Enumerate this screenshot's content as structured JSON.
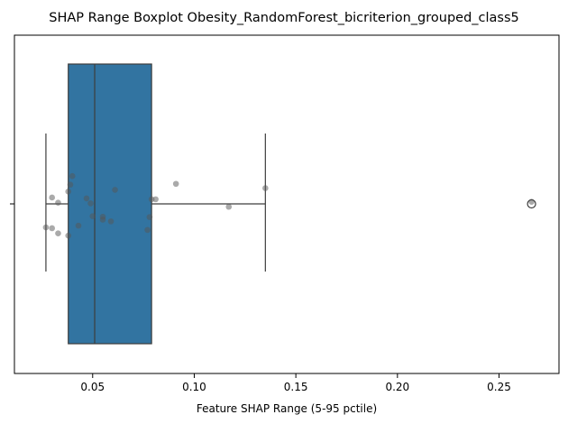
{
  "chart_data": {
    "type": "boxplot",
    "title": "SHAP Range Boxplot Obesity_RandomForest_bicriterion_grouped_class5",
    "xlabel": "Feature SHAP Range (5-95 pctile)",
    "ylabel": "",
    "xlim": [
      0.0115,
      0.2795
    ],
    "xticks": [
      0.05,
      0.1,
      0.15,
      0.2,
      0.25
    ],
    "xtick_labels": [
      "0.05",
      "0.10",
      "0.15",
      "0.20",
      "0.25"
    ],
    "grid": false,
    "colors": {
      "box": "#3274a1",
      "line": "#3d3d3d",
      "points": "#555555"
    },
    "box": {
      "whisker_low": 0.027,
      "q1": 0.038,
      "median": 0.051,
      "q3": 0.079,
      "whisker_high": 0.135,
      "outliers": [
        0.266
      ]
    },
    "points": [
      {
        "x": 0.027,
        "jitter": -0.137
      },
      {
        "x": 0.03,
        "jitter": 0.037
      },
      {
        "x": 0.03,
        "jitter": -0.142
      },
      {
        "x": 0.033,
        "jitter": 0.007
      },
      {
        "x": 0.033,
        "jitter": -0.172
      },
      {
        "x": 0.038,
        "jitter": 0.072
      },
      {
        "x": 0.038,
        "jitter": -0.185
      },
      {
        "x": 0.039,
        "jitter": 0.112
      },
      {
        "x": 0.04,
        "jitter": 0.162
      },
      {
        "x": 0.043,
        "jitter": -0.127
      },
      {
        "x": 0.047,
        "jitter": 0.032
      },
      {
        "x": 0.049,
        "jitter": 0.003
      },
      {
        "x": 0.05,
        "jitter": -0.072
      },
      {
        "x": 0.055,
        "jitter": -0.092
      },
      {
        "x": 0.055,
        "jitter": -0.075
      },
      {
        "x": 0.059,
        "jitter": -0.102
      },
      {
        "x": 0.061,
        "jitter": 0.082
      },
      {
        "x": 0.077,
        "jitter": -0.152
      },
      {
        "x": 0.078,
        "jitter": -0.077
      },
      {
        "x": 0.079,
        "jitter": 0.027
      },
      {
        "x": 0.081,
        "jitter": 0.027
      },
      {
        "x": 0.091,
        "jitter": 0.117
      },
      {
        "x": 0.117,
        "jitter": -0.017
      },
      {
        "x": 0.135,
        "jitter": 0.092
      },
      {
        "x": 0.266,
        "jitter": 0.012
      }
    ]
  }
}
